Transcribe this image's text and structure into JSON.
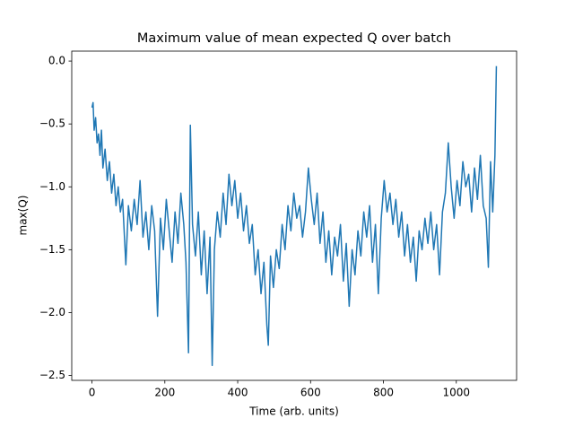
{
  "chart_data": {
    "type": "line",
    "title": "Maximum value of mean expected Q over batch",
    "xlabel": "Time (arb. units)",
    "ylabel": "max(Q)",
    "x": [
      0,
      3,
      6,
      10,
      14,
      18,
      22,
      26,
      30,
      36,
      42,
      48,
      54,
      60,
      66,
      72,
      78,
      84,
      93,
      100,
      108,
      116,
      124,
      132,
      140,
      148,
      156,
      164,
      172,
      180,
      188,
      196,
      204,
      212,
      220,
      228,
      236,
      244,
      252,
      258,
      265,
      270,
      276,
      284,
      292,
      300,
      308,
      316,
      324,
      330,
      336,
      344,
      352,
      360,
      368,
      376,
      384,
      392,
      400,
      408,
      416,
      424,
      432,
      440,
      448,
      456,
      464,
      472,
      480,
      484,
      490,
      498,
      506,
      514,
      522,
      530,
      538,
      546,
      554,
      562,
      570,
      578,
      586,
      594,
      602,
      610,
      618,
      626,
      634,
      642,
      650,
      658,
      666,
      674,
      682,
      690,
      698,
      706,
      714,
      722,
      730,
      738,
      746,
      754,
      762,
      770,
      778,
      786,
      794,
      802,
      810,
      818,
      826,
      834,
      842,
      850,
      858,
      866,
      874,
      882,
      890,
      898,
      906,
      914,
      922,
      930,
      938,
      946,
      954,
      962,
      970,
      978,
      986,
      994,
      1002,
      1010,
      1018,
      1026,
      1034,
      1042,
      1050,
      1058,
      1066,
      1074,
      1082,
      1088,
      1094,
      1100,
      1106,
      1110
    ],
    "series": [
      {
        "name": "max(Q)",
        "color": "#1f77b4",
        "values": [
          -0.37,
          -0.33,
          -0.55,
          -0.45,
          -0.65,
          -0.58,
          -0.75,
          -0.55,
          -0.85,
          -0.7,
          -0.95,
          -0.8,
          -1.05,
          -0.9,
          -1.15,
          -1.0,
          -1.2,
          -1.1,
          -1.62,
          -1.15,
          -1.35,
          -1.1,
          -1.3,
          -0.95,
          -1.4,
          -1.2,
          -1.5,
          -1.15,
          -1.35,
          -2.03,
          -1.25,
          -1.5,
          -1.1,
          -1.35,
          -1.6,
          -1.2,
          -1.45,
          -1.05,
          -1.3,
          -1.6,
          -2.32,
          -0.51,
          -1.3,
          -1.55,
          -1.2,
          -1.7,
          -1.35,
          -1.85,
          -1.4,
          -2.42,
          -1.5,
          -1.2,
          -1.4,
          -1.05,
          -1.3,
          -0.9,
          -1.15,
          -0.95,
          -1.25,
          -1.05,
          -1.35,
          -1.15,
          -1.45,
          -1.3,
          -1.7,
          -1.5,
          -1.85,
          -1.6,
          -2.1,
          -2.26,
          -1.55,
          -1.8,
          -1.5,
          -1.65,
          -1.3,
          -1.5,
          -1.15,
          -1.35,
          -1.05,
          -1.25,
          -1.15,
          -1.4,
          -1.2,
          -0.85,
          -1.1,
          -1.3,
          -1.05,
          -1.45,
          -1.2,
          -1.6,
          -1.35,
          -1.7,
          -1.4,
          -1.55,
          -1.3,
          -1.75,
          -1.45,
          -1.95,
          -1.5,
          -1.7,
          -1.35,
          -1.55,
          -1.2,
          -1.4,
          -1.15,
          -1.6,
          -1.3,
          -1.85,
          -1.25,
          -0.95,
          -1.2,
          -1.05,
          -1.3,
          -1.1,
          -1.4,
          -1.2,
          -1.55,
          -1.3,
          -1.6,
          -1.4,
          -1.75,
          -1.35,
          -1.5,
          -1.25,
          -1.45,
          -1.2,
          -1.5,
          -1.3,
          -1.7,
          -1.2,
          -1.05,
          -0.65,
          -1.0,
          -1.25,
          -0.95,
          -1.15,
          -0.8,
          -1.0,
          -0.9,
          -1.2,
          -0.85,
          -1.1,
          -0.75,
          -1.15,
          -1.25,
          -1.64,
          -0.8,
          -1.2,
          -0.75,
          -0.04
        ]
      }
    ],
    "xlim": [
      -55.5,
      1165.5
    ],
    "ylim": [
      -2.539,
      0.079
    ],
    "xticks": [
      0,
      200,
      400,
      600,
      800,
      1000
    ],
    "yticks": [
      {
        "value": -2.5,
        "label": "−2.5"
      },
      {
        "value": -2.0,
        "label": "−2.0"
      },
      {
        "value": -1.5,
        "label": "−1.5"
      },
      {
        "value": -1.0,
        "label": "−1.0"
      },
      {
        "value": -0.5,
        "label": "−0.5"
      },
      {
        "value": 0.0,
        "label": "0.0"
      }
    ],
    "grid": false
  }
}
